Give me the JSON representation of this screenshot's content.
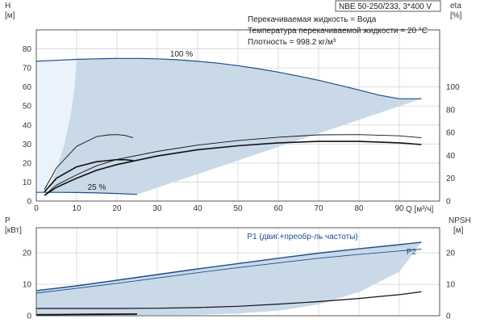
{
  "chart_data": [
    {
      "type": "line",
      "panel": "pump-performance",
      "info_box": {
        "model": "NBE 50-250/233, 3*400 V",
        "lines": [
          "Перекачиваемая жидкость = Вода",
          "Температура перекачиваемой жидкости = 20 °C",
          "Плотность = 998.2 кг/м³"
        ]
      },
      "xlabel": "Q [м³/ч]",
      "xlim": [
        0,
        100
      ],
      "x_ticks": [
        0,
        10,
        20,
        30,
        40,
        50,
        60,
        70,
        80,
        90
      ],
      "ylabel_left": {
        "symbol": "H",
        "unit": "[м]"
      },
      "ylim_left": [
        0,
        90
      ],
      "y_ticks_left": [
        0,
        10,
        20,
        30,
        40,
        50,
        60,
        70,
        80
      ],
      "ylabel_right": {
        "symbol": "eta",
        "unit": "[%]"
      },
      "ylim_right": [
        0,
        150
      ],
      "y_ticks_right": [
        0,
        20,
        40,
        60,
        80,
        100
      ],
      "grid": true,
      "speed_labels": [
        {
          "text": "100 %",
          "x": 36,
          "y": 76
        },
        {
          "text": "25 %",
          "x": 15,
          "y": 6
        }
      ],
      "series": [
        {
          "role": "head-100",
          "axis": "left",
          "color": "#1f4e8c",
          "width": 1.2,
          "x": [
            0,
            5,
            10,
            15,
            20,
            25,
            30,
            35,
            40,
            45,
            50,
            55,
            60,
            65,
            70,
            75,
            80,
            85,
            90,
            95.5
          ],
          "y": [
            73.5,
            74.0,
            74.5,
            74.8,
            75.0,
            75.0,
            74.8,
            74.3,
            73.5,
            72.5,
            71.2,
            69.6,
            67.8,
            65.7,
            63.5,
            61.0,
            58.4,
            55.7,
            53.8,
            53.8
          ]
        },
        {
          "role": "head-25",
          "axis": "left",
          "color": "#1f4e8c",
          "width": 1.2,
          "x": [
            0,
            5,
            10,
            15,
            20,
            25
          ],
          "y": [
            4.6,
            4.6,
            4.5,
            4.3,
            4.0,
            3.5
          ]
        },
        {
          "role": "efficiency",
          "axis": "right",
          "color": "#111111",
          "width": 1.6,
          "x": [
            2,
            5,
            10,
            15,
            20,
            30,
            40,
            50,
            60,
            70,
            80,
            90,
            95.5
          ],
          "y": [
            5,
            12,
            20,
            27,
            32,
            39.5,
            45,
            48.5,
            51,
            52.3,
            52.3,
            51,
            49.5
          ]
        },
        {
          "role": "efficiency",
          "axis": "right",
          "color": "#111111",
          "width": 0.9,
          "x": [
            2,
            5,
            10,
            15,
            20,
            30,
            40,
            50,
            60,
            70,
            80,
            90,
            95.5
          ],
          "y": [
            5,
            14,
            23,
            31,
            36.5,
            43.5,
            49,
            53,
            56,
            58,
            58.2,
            57.2,
            55.5
          ]
        },
        {
          "role": "efficiency",
          "axis": "right",
          "color": "#111111",
          "width": 1.6,
          "x": [
            2,
            5,
            10,
            15,
            20,
            22,
            24
          ],
          "y": [
            8,
            20,
            30,
            34.5,
            36.3,
            36.2,
            35.5
          ]
        },
        {
          "role": "efficiency",
          "axis": "right",
          "color": "#111111",
          "width": 0.9,
          "x": [
            2,
            5,
            10,
            15,
            18,
            20,
            22,
            24
          ],
          "y": [
            10,
            29,
            48,
            56.5,
            58,
            58.2,
            57.5,
            55.5
          ]
        }
      ]
    },
    {
      "type": "line",
      "panel": "power-npsh",
      "xlim": [
        0,
        100
      ],
      "ylabel_left": {
        "symbol": "P",
        "unit": "[кВт]"
      },
      "ylim_left": [
        0,
        28
      ],
      "y_ticks_left": [
        0,
        10,
        20
      ],
      "ylabel_right": {
        "symbol": "NPSH",
        "unit": "[м]"
      },
      "ylim_right": [
        0,
        28
      ],
      "y_ticks_right": [
        0,
        10,
        20
      ],
      "grid": true,
      "series_labels": [
        {
          "text": "P1 (двиг.+преобр-ль частоты)",
          "x": 66,
          "y": 24.4
        },
        {
          "text": "P2",
          "x": 93,
          "y": 19.5
        }
      ],
      "series": [
        {
          "name": "P1",
          "axis": "left",
          "color": "#1f4e8c",
          "width": 1.4,
          "x": [
            0,
            10,
            20,
            30,
            40,
            50,
            60,
            70,
            80,
            90,
            95.5
          ],
          "y": [
            8.0,
            9.5,
            11.3,
            13.1,
            14.9,
            16.6,
            18.3,
            19.9,
            21.3,
            22.6,
            23.4
          ]
        },
        {
          "name": "P2",
          "axis": "left",
          "color": "#1f4e8c",
          "width": 0.9,
          "x": [
            0,
            10,
            20,
            30,
            40,
            50,
            60,
            70,
            80,
            90,
            95.5
          ],
          "y": [
            7.2,
            8.7,
            10.3,
            12.0,
            13.7,
            15.3,
            16.8,
            18.3,
            19.5,
            20.6,
            21.2
          ]
        },
        {
          "role": "npsh",
          "axis": "right",
          "color": "#111111",
          "width": 1.2,
          "x": [
            0,
            10,
            20,
            30,
            40,
            50,
            60,
            70,
            80,
            90,
            95.5
          ],
          "y": [
            2.3,
            2.3,
            2.3,
            2.4,
            2.6,
            3.0,
            3.7,
            4.5,
            5.5,
            6.7,
            7.6
          ]
        },
        {
          "role": "power-25",
          "axis": "left",
          "color": "#111111",
          "width": 1.8,
          "x": [
            0,
            5,
            10,
            15,
            20,
            25
          ],
          "y": [
            0.3,
            0.35,
            0.4,
            0.45,
            0.5,
            0.55
          ]
        }
      ]
    }
  ]
}
